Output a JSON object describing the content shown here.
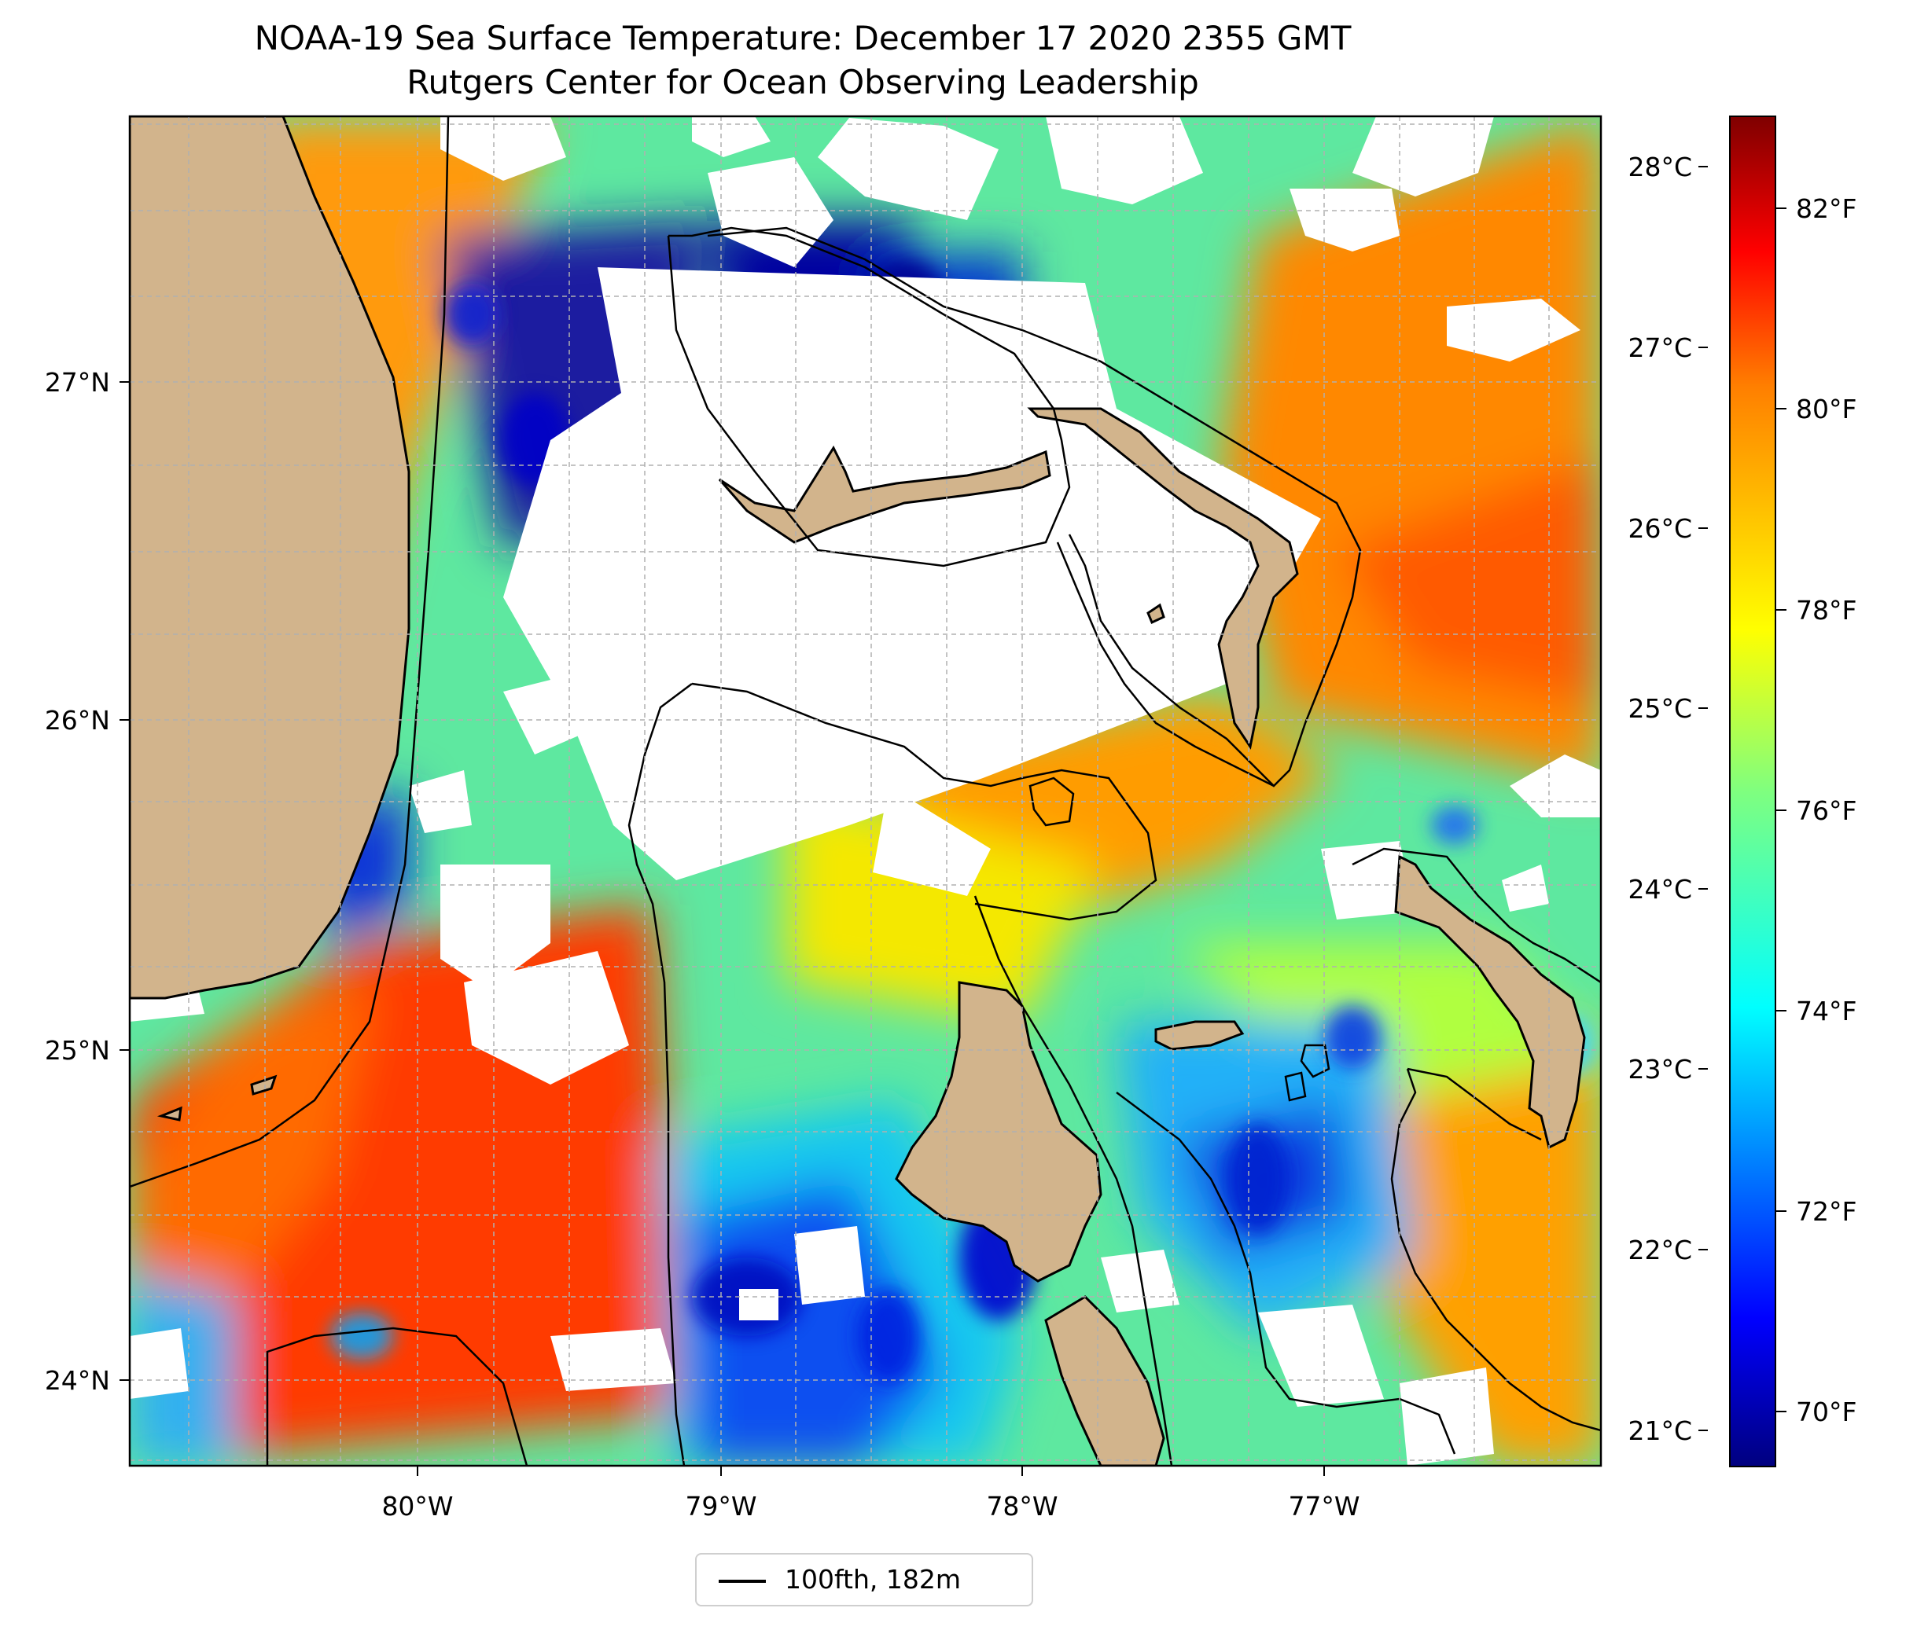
{
  "title": "NOAA-19 Sea Surface Temperature: December 17 2020 2355 GMT",
  "subtitle": "Rutgers Center for Ocean Observing Leadership",
  "map": {
    "lon_labels": [
      "80°W",
      "79°W",
      "78°W",
      "77°W"
    ],
    "lat_labels": [
      "27°N",
      "26°N",
      "25°N",
      "24°N"
    ],
    "land_color": "#d2b48c",
    "no_data_color": "#ffffff",
    "colormap": "jet"
  },
  "colorbar": {
    "celsius_labels": [
      "28°C",
      "27°C",
      "26°C",
      "25°C",
      "24°C",
      "23°C",
      "22°C",
      "21°C"
    ],
    "fahrenheit_labels": [
      "82°F",
      "80°F",
      "78°F",
      "76°F",
      "74°F",
      "72°F",
      "70°F"
    ],
    "colors": [
      "#00007f",
      "#0000ff",
      "#007fff",
      "#00ffff",
      "#7fff7f",
      "#ffff00",
      "#ff7f00",
      "#ff0000",
      "#7f0000"
    ]
  },
  "legend": {
    "label": "100fth, 182m"
  }
}
